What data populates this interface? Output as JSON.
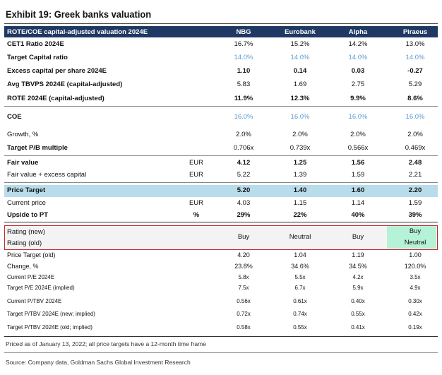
{
  "title": "Exhibit 19: Greek banks valuation",
  "table": {
    "header": [
      "ROTE/COE capital-adjusted valuation 2024E",
      "NBG",
      "Eurobank",
      "Alpha",
      "Piraeus"
    ],
    "rows": [
      {
        "label": "CET1 Ratio 2024E",
        "values": [
          "16.7%",
          "15.2%",
          "14.2%",
          "13.0%"
        ]
      },
      {
        "label": "Target Capital ratio",
        "values": [
          "14.0%",
          "14.0%",
          "14.0%",
          "14.0%"
        ]
      },
      {
        "label": "Excess capital per share 2024E",
        "values": [
          "1.10",
          "0.14",
          "0.03",
          "-0.27"
        ]
      },
      {
        "label": "Avg TBVPS 2024E (capital-adjusted)",
        "values": [
          "5.83",
          "1.69",
          "2.75",
          "5.29"
        ]
      },
      {
        "label": "ROTE 2024E (capital-adjusted)",
        "values": [
          "11.9%",
          "12.3%",
          "9.9%",
          "8.6%"
        ]
      },
      {
        "label": "COE",
        "values": [
          "16.0%",
          "16.0%",
          "16.0%",
          "16.0%"
        ]
      },
      {
        "label": "Growth, %",
        "values": [
          "2.0%",
          "2.0%",
          "2.0%",
          "2.0%"
        ]
      },
      {
        "label": "Target P/B multiple",
        "values": [
          "0.706x",
          "0.739x",
          "0.566x",
          "0.469x"
        ]
      },
      {
        "label": "Fair value",
        "unit": "EUR",
        "values": [
          "4.12",
          "1.25",
          "1.56",
          "2.48"
        ]
      },
      {
        "label": "Fair value + excess capital",
        "unit": "EUR",
        "values": [
          "5.22",
          "1.39",
          "1.59",
          "2.21"
        ]
      },
      {
        "label": "Price Target",
        "values": [
          "5.20",
          "1.40",
          "1.60",
          "2.20"
        ]
      },
      {
        "label": "Current price",
        "unit": "EUR",
        "values": [
          "4.03",
          "1.15",
          "1.14",
          "1.59"
        ]
      },
      {
        "label": "Upside to PT",
        "unit": "%",
        "values": [
          "29%",
          "22%",
          "40%",
          "39%"
        ]
      }
    ],
    "rating": {
      "labels": [
        "Rating (new)",
        "Rating (old)"
      ],
      "values": [
        [
          "Buy"
        ],
        [
          "Neutral"
        ],
        [
          "Buy"
        ],
        [
          "Buy",
          "Neutral"
        ]
      ]
    },
    "rows_small": [
      {
        "label": "Price Target (old)",
        "values": [
          "4.20",
          "1.04",
          "1.19",
          "1.00"
        ]
      },
      {
        "label": "Change, %",
        "values": [
          "23.8%",
          "34.6%",
          "34.5%",
          "120.0%"
        ]
      },
      {
        "label": "Current P/E 2024E",
        "values": [
          "5.8x",
          "5.5x",
          "4.2x",
          "3.5x"
        ]
      },
      {
        "label": "Target P/E 2024E (implied)",
        "values": [
          "7.5x",
          "6.7x",
          "5.9x",
          "4.9x"
        ]
      },
      {
        "label": "Current P/TBV 2024E",
        "values": [
          "0.56x",
          "0.61x",
          "0.40x",
          "0.30x"
        ]
      },
      {
        "label": "Target P/TBV 2024E (new; implied)",
        "values": [
          "0.72x",
          "0.74x",
          "0.55x",
          "0.42x"
        ]
      },
      {
        "label": "Target P/TBV 2024E (old; implied)",
        "values": [
          "0.58x",
          "0.55x",
          "0.41x",
          "0.19x"
        ]
      }
    ]
  },
  "footnote": "Priced as of January 13, 2022; all price targets have a 12-month time frame",
  "source": "Source: Company data, Goldman Sachs Global Investment Research"
}
